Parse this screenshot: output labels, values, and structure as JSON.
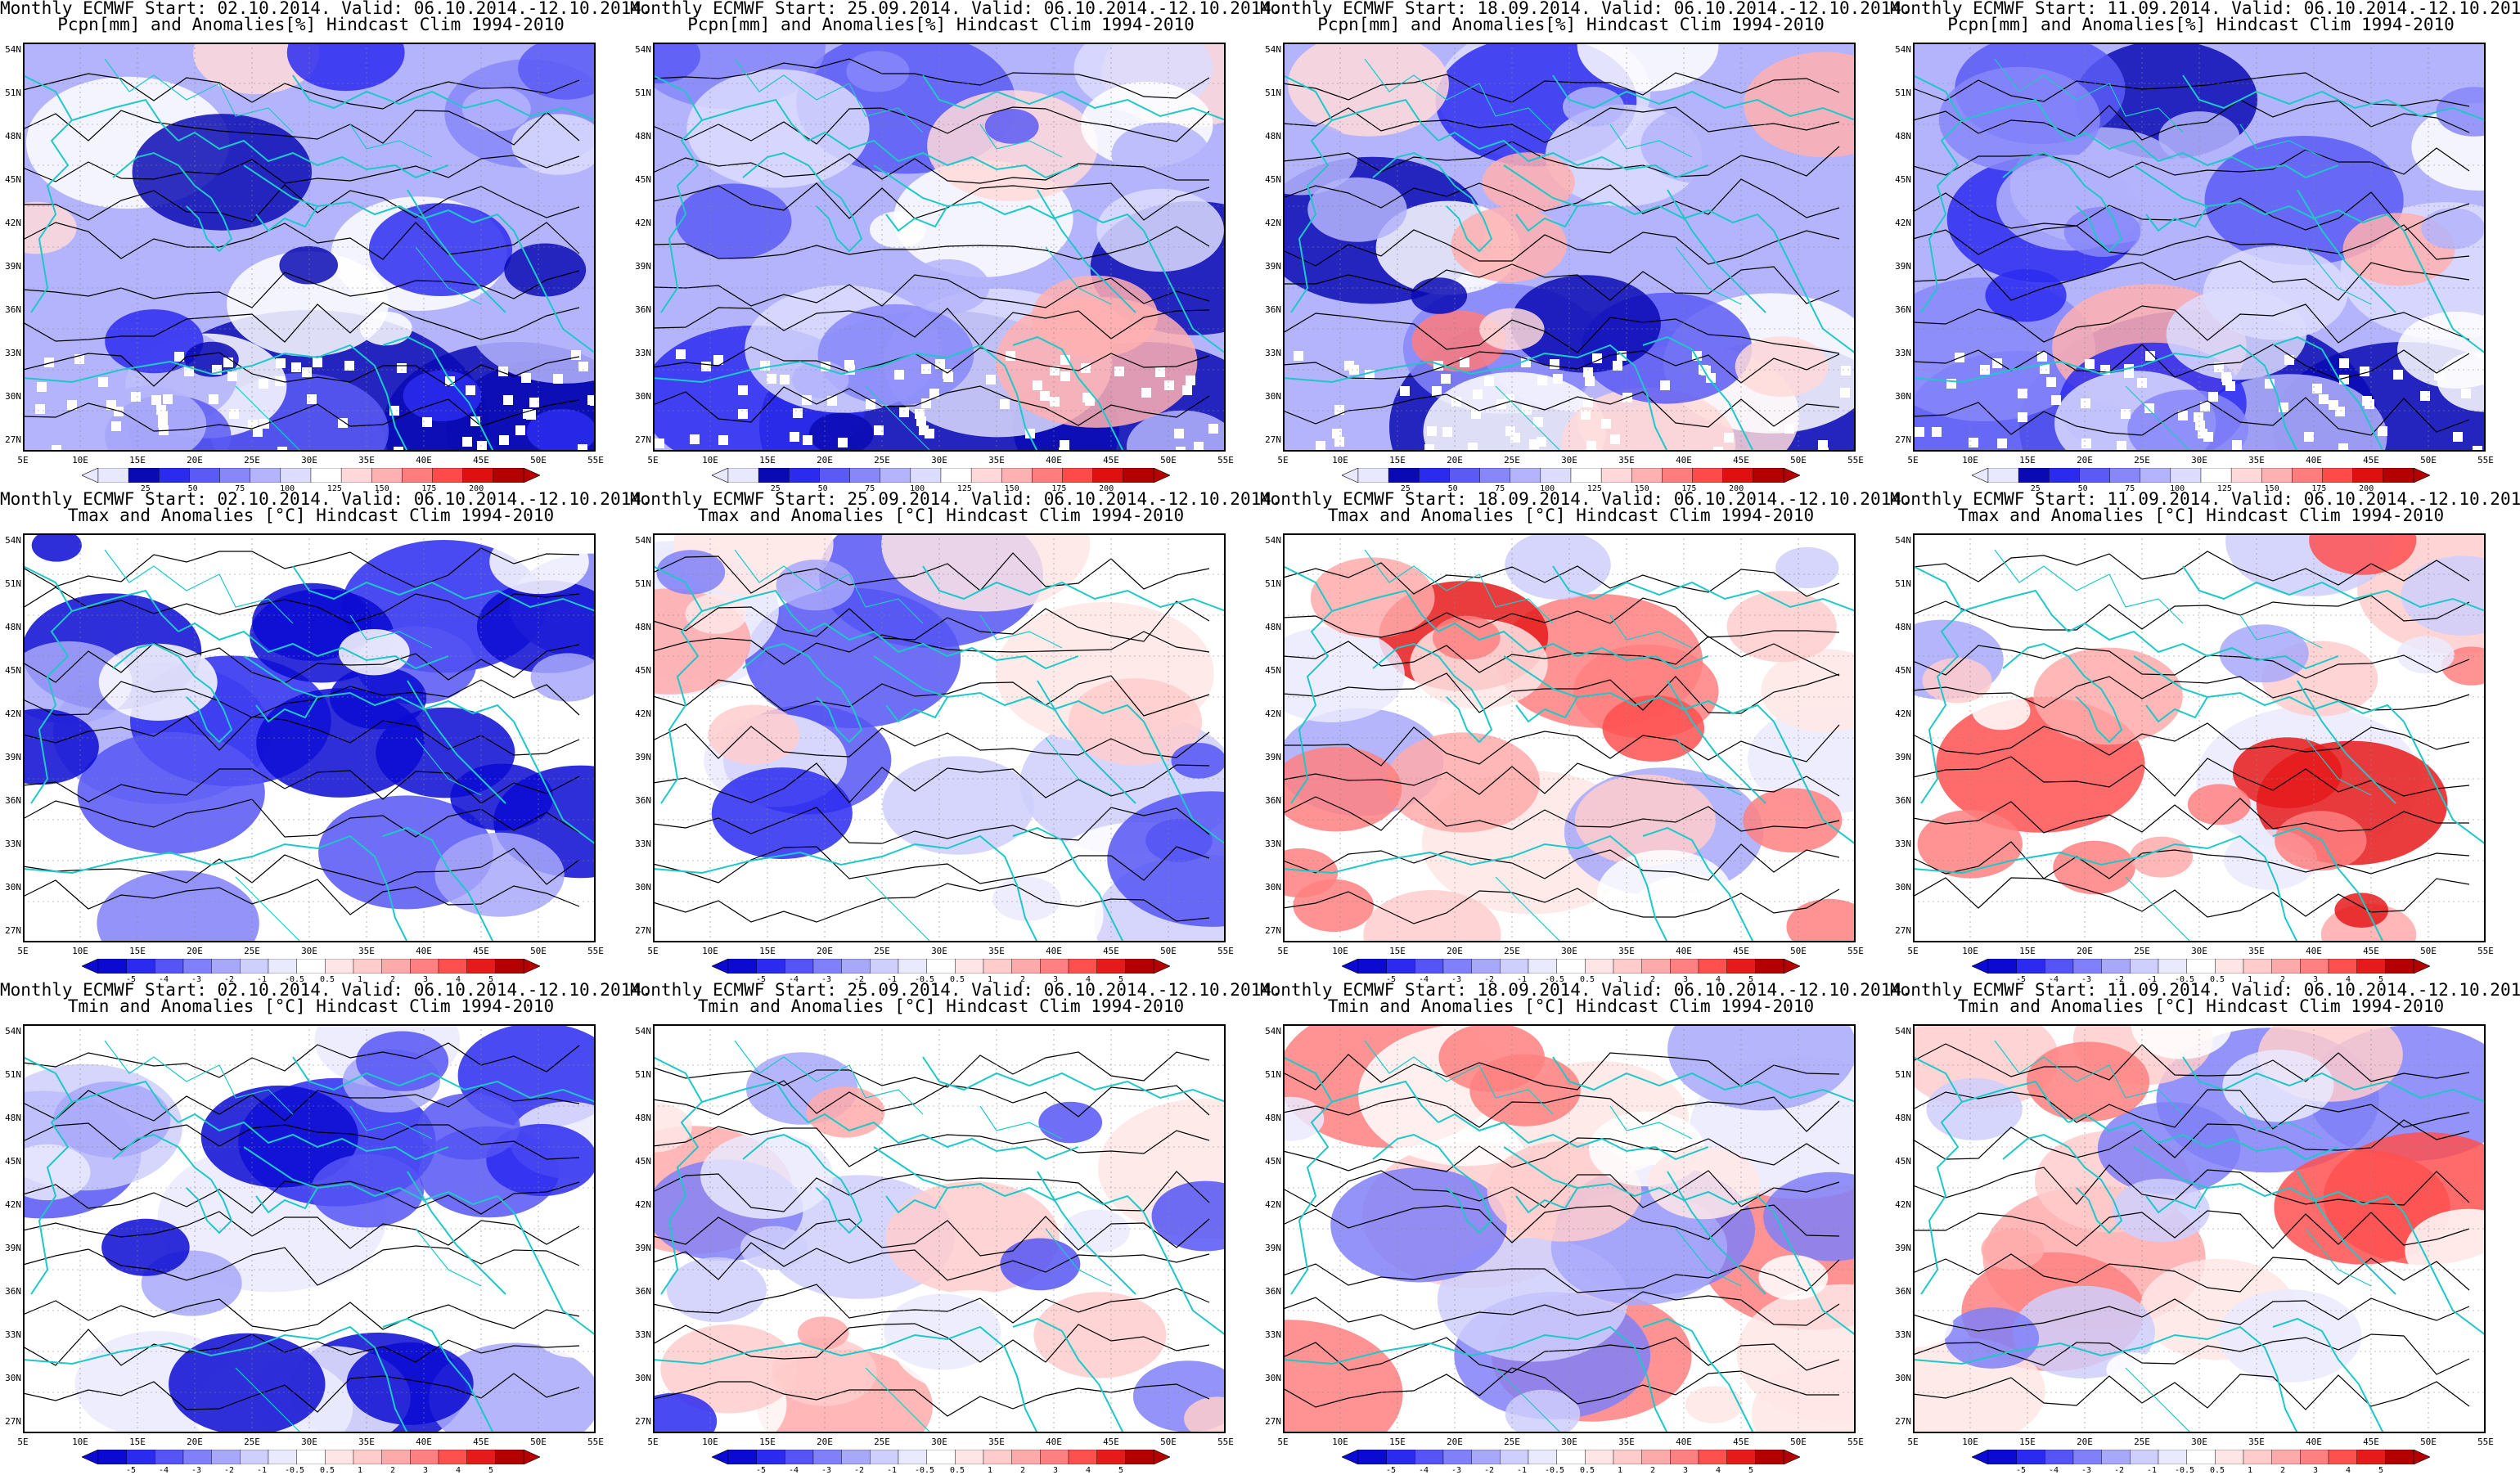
{
  "colors": {
    "precip_scale": [
      "#e8e8ff",
      "#0a0ab4",
      "#2b2bf0",
      "#5a5af5",
      "#8787fa",
      "#b4b4fc",
      "#dcdcfe",
      "#ffffff",
      "#ffd9d9",
      "#ffb0b0",
      "#ff7d7d",
      "#ff4a4a",
      "#e01010",
      "#b40000"
    ],
    "temp_scale": [
      "#0a0ad2",
      "#2a2af0",
      "#5555f5",
      "#8080f8",
      "#a8a8fa",
      "#cfcffd",
      "#eaeafe",
      "#ffffff",
      "#ffe6e6",
      "#ffcccc",
      "#ffaaaa",
      "#ff8080",
      "#ff5050",
      "#e61a1a",
      "#b40000"
    ],
    "coastline": "#1ec8c8",
    "contour": "#000000"
  },
  "axes": {
    "lat_labels": [
      "54N",
      "51N",
      "48N",
      "45N",
      "42N",
      "39N",
      "36N",
      "33N",
      "30N",
      "27N"
    ],
    "lon_labels": [
      "5E",
      "10E",
      "15E",
      "20E",
      "25E",
      "30E",
      "35E",
      "40E",
      "45E",
      "50E",
      "55E"
    ]
  },
  "colorbars": {
    "precip": [
      "25",
      "50",
      "75",
      "100",
      "125",
      "150",
      "175",
      "200"
    ],
    "temp": [
      "-5",
      "-4",
      "-3",
      "-2",
      "-1",
      "-0.5",
      "0.5",
      "1",
      "2",
      "3",
      "4",
      "5"
    ]
  },
  "panels": [
    {
      "title1": "Monthly ECMWF Start: 02.10.2014. Valid: 06.10.2014.-12.10.2014.",
      "title2": "Pcpn[mm] and Anomalies[%] Hindcast Clim 1994-2010",
      "var": "precip",
      "tone": -2
    },
    {
      "title1": "Monthly ECMWF Start: 25.09.2014. Valid: 06.10.2014.-12.10.2014.",
      "title2": "Pcpn[mm] and Anomalies[%] Hindcast Clim 1994-2010",
      "var": "precip",
      "tone": -1
    },
    {
      "title1": "Monthly ECMWF Start: 18.09.2014. Valid: 06.10.2014.-12.10.2014.",
      "title2": "Pcpn[mm] and Anomalies[%] Hindcast Clim 1994-2010",
      "var": "precip",
      "tone": -1
    },
    {
      "title1": "Monthly ECMWF Start: 11.09.2014. Valid: 06.10.2014.-12.10.2014.",
      "title2": "Pcpn[mm] and Anomalies[%] Hindcast Clim 1994-2010",
      "var": "precip",
      "tone": -1
    },
    {
      "title1": "Monthly ECMWF Start: 02.10.2014. Valid: 06.10.2014.-12.10.2014.",
      "title2": "Tmax and Anomalies [°C] Hindcast Clim 1994-2010",
      "var": "temp",
      "tone": -3
    },
    {
      "title1": "Monthly ECMWF Start: 25.09.2014. Valid: 06.10.2014.-12.10.2014.",
      "title2": "Tmax and Anomalies [°C] Hindcast Clim 1994-2010",
      "var": "temp",
      "tone": -1
    },
    {
      "title1": "Monthly ECMWF Start: 18.09.2014. Valid: 06.10.2014.-12.10.2014.",
      "title2": "Tmax and Anomalies [°C] Hindcast Clim 1994-2010",
      "var": "temp",
      "tone": 1
    },
    {
      "title1": "Monthly ECMWF Start: 11.09.2014. Valid: 06.10.2014.-12.10.2014.",
      "title2": "Tmax and Anomalies [°C] Hindcast Clim 1994-2010",
      "var": "temp",
      "tone": 1
    },
    {
      "title1": "Monthly ECMWF Start: 02.10.2014. Valid: 06.10.2014.-12.10.2014.",
      "title2": "Tmin and Anomalies [°C] Hindcast Clim 1994-2010",
      "var": "temp",
      "tone": -3
    },
    {
      "title1": "Monthly ECMWF Start: 25.09.2014. Valid: 06.10.2014.-12.10.2014.",
      "title2": "Tmin and Anomalies [°C] Hindcast Clim 1994-2010",
      "var": "temp",
      "tone": -1
    },
    {
      "title1": "Monthly ECMWF Start: 18.09.2014. Valid: 06.10.2014.-12.10.2014.",
      "title2": "Tmin and Anomalies [°C] Hindcast Clim 1994-2010",
      "var": "temp",
      "tone": 0
    },
    {
      "title1": "Monthly ECMWF Start: 11.09.2014. Valid: 06.10.2014.-12.10.2014.",
      "title2": "Tmin and Anomalies [°C] Hindcast Clim 1994-2010",
      "var": "temp",
      "tone": 0
    }
  ]
}
